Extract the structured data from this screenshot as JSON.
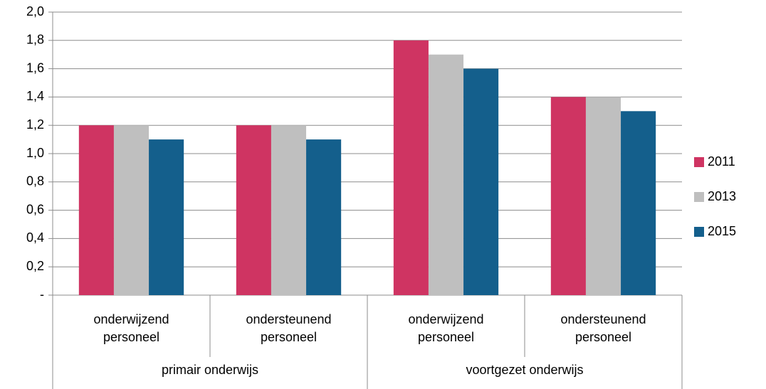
{
  "chart_data": {
    "type": "bar",
    "groups": [
      {
        "name": "primair onderwijs",
        "categories": [
          "onderwijzend personeel",
          "ondersteunend personeel"
        ]
      },
      {
        "name": "voortgezet onderwijs",
        "categories": [
          "onderwijzend personeel",
          "ondersteunend personeel"
        ]
      }
    ],
    "series": [
      {
        "name": "2011",
        "color": "#cf3462",
        "values": [
          1.2,
          1.2,
          1.8,
          1.4
        ]
      },
      {
        "name": "2013",
        "color": "#bfbfbf",
        "values": [
          1.2,
          1.2,
          1.7,
          1.4
        ]
      },
      {
        "name": "2015",
        "color": "#145f8c",
        "values": [
          1.1,
          1.1,
          1.6,
          1.3
        ]
      }
    ],
    "ylim": [
      0,
      2
    ],
    "yticks": [
      {
        "value": 0,
        "label": "-"
      },
      {
        "value": 0.2,
        "label": "0,2"
      },
      {
        "value": 0.4,
        "label": "0,4"
      },
      {
        "value": 0.6,
        "label": "0,6"
      },
      {
        "value": 0.8,
        "label": "0,8"
      },
      {
        "value": 1.0,
        "label": "1,0"
      },
      {
        "value": 1.2,
        "label": "1,2"
      },
      {
        "value": 1.4,
        "label": "1,4"
      },
      {
        "value": 1.6,
        "label": "1,6"
      },
      {
        "value": 1.8,
        "label": "1,8"
      },
      {
        "value": 2.0,
        "label": "2,0"
      }
    ],
    "grid": true,
    "legend": "right"
  }
}
